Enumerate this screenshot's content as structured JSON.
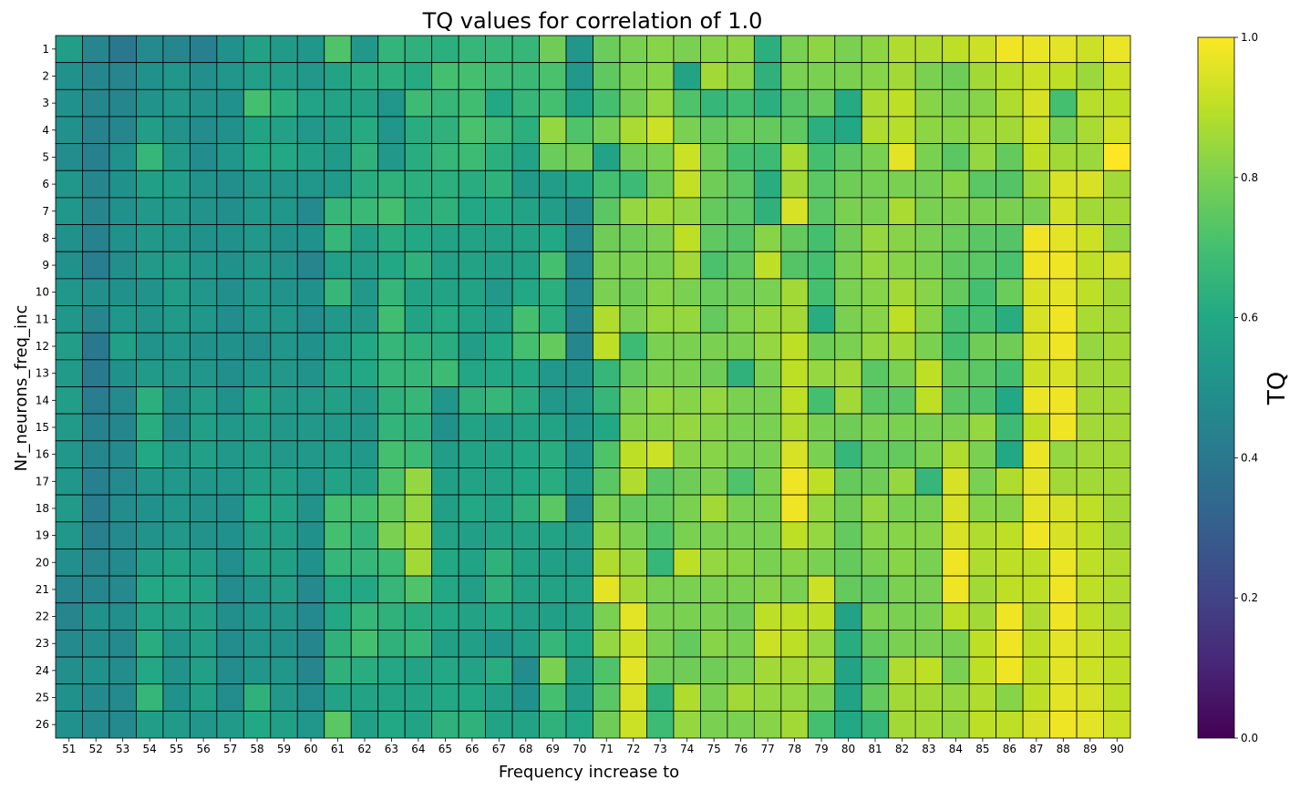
{
  "chart_data": {
    "type": "heatmap",
    "title": "TQ values for correlation of 1.0",
    "xlabel": "Frequency increase to",
    "ylabel": "Nr_neurons_freq_inc",
    "colorbar_label": "TQ",
    "colormap": "viridis",
    "vmin": 0,
    "vmax": 1,
    "colorbar_ticks": [
      "0.0",
      "0.2",
      "0.4",
      "0.6",
      "0.8",
      "1.0"
    ],
    "x": [
      "51",
      "52",
      "53",
      "54",
      "55",
      "56",
      "57",
      "58",
      "59",
      "60",
      "61",
      "62",
      "63",
      "64",
      "65",
      "66",
      "67",
      "68",
      "69",
      "70",
      "71",
      "72",
      "73",
      "74",
      "75",
      "76",
      "77",
      "78",
      "79",
      "80",
      "81",
      "82",
      "83",
      "84",
      "85",
      "86",
      "87",
      "88",
      "89",
      "90"
    ],
    "y": [
      "1",
      "2",
      "3",
      "4",
      "5",
      "6",
      "7",
      "8",
      "9",
      "10",
      "11",
      "12",
      "13",
      "14",
      "15",
      "16",
      "17",
      "18",
      "19",
      "20",
      "21",
      "22",
      "23",
      "24",
      "25",
      "26"
    ],
    "values": [
      [
        0.55,
        0.45,
        0.4,
        0.47,
        0.46,
        0.43,
        0.5,
        0.57,
        0.54,
        0.52,
        0.72,
        0.53,
        0.65,
        0.64,
        0.63,
        0.66,
        0.66,
        0.66,
        0.78,
        0.52,
        0.77,
        0.8,
        0.82,
        0.8,
        0.82,
        0.83,
        0.63,
        0.8,
        0.83,
        0.8,
        0.83,
        0.88,
        0.88,
        0.9,
        0.92,
        0.98,
        0.97,
        0.96,
        0.92,
        0.97
      ],
      [
        0.5,
        0.46,
        0.45,
        0.5,
        0.52,
        0.49,
        0.52,
        0.56,
        0.55,
        0.53,
        0.58,
        0.62,
        0.63,
        0.61,
        0.7,
        0.7,
        0.68,
        0.67,
        0.71,
        0.53,
        0.75,
        0.8,
        0.82,
        0.58,
        0.86,
        0.82,
        0.64,
        0.8,
        0.8,
        0.8,
        0.82,
        0.86,
        0.8,
        0.78,
        0.86,
        0.89,
        0.92,
        0.9,
        0.85,
        0.92
      ],
      [
        0.5,
        0.46,
        0.46,
        0.51,
        0.53,
        0.51,
        0.5,
        0.7,
        0.63,
        0.58,
        0.58,
        0.58,
        0.52,
        0.68,
        0.66,
        0.69,
        0.6,
        0.66,
        0.7,
        0.58,
        0.7,
        0.78,
        0.84,
        0.72,
        0.66,
        0.69,
        0.63,
        0.73,
        0.76,
        0.61,
        0.87,
        0.9,
        0.82,
        0.8,
        0.82,
        0.88,
        0.94,
        0.7,
        0.89,
        0.9
      ],
      [
        0.5,
        0.44,
        0.46,
        0.55,
        0.51,
        0.48,
        0.5,
        0.58,
        0.57,
        0.53,
        0.55,
        0.61,
        0.52,
        0.62,
        0.64,
        0.71,
        0.68,
        0.63,
        0.84,
        0.72,
        0.79,
        0.87,
        0.92,
        0.8,
        0.76,
        0.77,
        0.76,
        0.75,
        0.63,
        0.6,
        0.88,
        0.89,
        0.83,
        0.82,
        0.85,
        0.86,
        0.92,
        0.8,
        0.87,
        0.93
      ],
      [
        0.48,
        0.43,
        0.5,
        0.66,
        0.54,
        0.48,
        0.52,
        0.6,
        0.6,
        0.56,
        0.54,
        0.64,
        0.53,
        0.62,
        0.66,
        0.68,
        0.63,
        0.58,
        0.77,
        0.78,
        0.58,
        0.78,
        0.8,
        0.92,
        0.78,
        0.7,
        0.68,
        0.87,
        0.7,
        0.75,
        0.8,
        0.96,
        0.8,
        0.74,
        0.84,
        0.76,
        0.9,
        0.86,
        0.85,
        1.0
      ],
      [
        0.52,
        0.45,
        0.5,
        0.56,
        0.55,
        0.51,
        0.49,
        0.53,
        0.52,
        0.52,
        0.54,
        0.62,
        0.64,
        0.63,
        0.63,
        0.62,
        0.64,
        0.54,
        0.55,
        0.58,
        0.7,
        0.68,
        0.78,
        0.91,
        0.78,
        0.74,
        0.62,
        0.86,
        0.74,
        0.78,
        0.79,
        0.8,
        0.79,
        0.82,
        0.74,
        0.73,
        0.85,
        0.94,
        0.94,
        0.86
      ],
      [
        0.52,
        0.45,
        0.5,
        0.53,
        0.53,
        0.51,
        0.49,
        0.53,
        0.52,
        0.47,
        0.66,
        0.67,
        0.7,
        0.62,
        0.64,
        0.6,
        0.6,
        0.58,
        0.55,
        0.48,
        0.74,
        0.84,
        0.86,
        0.84,
        0.76,
        0.74,
        0.64,
        0.94,
        0.74,
        0.8,
        0.8,
        0.87,
        0.8,
        0.8,
        0.8,
        0.8,
        0.8,
        0.93,
        0.86,
        0.86
      ],
      [
        0.5,
        0.44,
        0.5,
        0.53,
        0.52,
        0.5,
        0.5,
        0.53,
        0.5,
        0.5,
        0.66,
        0.56,
        0.62,
        0.6,
        0.58,
        0.58,
        0.57,
        0.58,
        0.6,
        0.47,
        0.78,
        0.78,
        0.8,
        0.9,
        0.75,
        0.73,
        0.82,
        0.76,
        0.7,
        0.78,
        0.84,
        0.82,
        0.8,
        0.77,
        0.74,
        0.73,
        0.98,
        0.96,
        0.92,
        0.84
      ],
      [
        0.5,
        0.42,
        0.49,
        0.54,
        0.55,
        0.52,
        0.5,
        0.53,
        0.51,
        0.45,
        0.56,
        0.55,
        0.6,
        0.64,
        0.57,
        0.58,
        0.56,
        0.58,
        0.7,
        0.47,
        0.8,
        0.8,
        0.8,
        0.86,
        0.71,
        0.75,
        0.9,
        0.73,
        0.7,
        0.8,
        0.84,
        0.82,
        0.8,
        0.75,
        0.74,
        0.71,
        0.98,
        0.98,
        0.9,
        0.93
      ],
      [
        0.52,
        0.49,
        0.5,
        0.51,
        0.55,
        0.52,
        0.49,
        0.53,
        0.51,
        0.5,
        0.66,
        0.53,
        0.66,
        0.58,
        0.58,
        0.58,
        0.53,
        0.6,
        0.63,
        0.47,
        0.8,
        0.78,
        0.82,
        0.8,
        0.77,
        0.78,
        0.8,
        0.86,
        0.7,
        0.8,
        0.82,
        0.86,
        0.82,
        0.76,
        0.7,
        0.77,
        0.94,
        0.96,
        0.9,
        0.86
      ],
      [
        0.52,
        0.45,
        0.52,
        0.51,
        0.54,
        0.52,
        0.48,
        0.52,
        0.52,
        0.48,
        0.53,
        0.53,
        0.69,
        0.58,
        0.61,
        0.58,
        0.55,
        0.7,
        0.63,
        0.46,
        0.88,
        0.8,
        0.84,
        0.84,
        0.76,
        0.81,
        0.84,
        0.86,
        0.62,
        0.8,
        0.82,
        0.9,
        0.82,
        0.7,
        0.7,
        0.62,
        0.94,
        0.98,
        0.87,
        0.86
      ],
      [
        0.55,
        0.4,
        0.56,
        0.51,
        0.52,
        0.5,
        0.5,
        0.49,
        0.52,
        0.5,
        0.55,
        0.6,
        0.66,
        0.64,
        0.62,
        0.55,
        0.6,
        0.7,
        0.76,
        0.46,
        0.9,
        0.68,
        0.8,
        0.8,
        0.8,
        0.8,
        0.84,
        0.9,
        0.78,
        0.8,
        0.84,
        0.86,
        0.8,
        0.7,
        0.78,
        0.78,
        0.94,
        0.98,
        0.84,
        0.86
      ],
      [
        0.54,
        0.41,
        0.5,
        0.54,
        0.53,
        0.52,
        0.49,
        0.52,
        0.53,
        0.51,
        0.58,
        0.6,
        0.66,
        0.66,
        0.68,
        0.59,
        0.6,
        0.6,
        0.53,
        0.51,
        0.66,
        0.76,
        0.8,
        0.8,
        0.78,
        0.64,
        0.8,
        0.9,
        0.84,
        0.86,
        0.74,
        0.8,
        0.9,
        0.76,
        0.74,
        0.7,
        0.92,
        0.94,
        0.86,
        0.86
      ],
      [
        0.55,
        0.42,
        0.47,
        0.63,
        0.51,
        0.55,
        0.5,
        0.58,
        0.54,
        0.54,
        0.56,
        0.54,
        0.64,
        0.66,
        0.52,
        0.64,
        0.66,
        0.62,
        0.53,
        0.52,
        0.66,
        0.8,
        0.84,
        0.82,
        0.84,
        0.8,
        0.8,
        0.9,
        0.7,
        0.86,
        0.74,
        0.74,
        0.9,
        0.74,
        0.72,
        0.6,
        0.97,
        0.98,
        0.86,
        0.86
      ],
      [
        0.54,
        0.44,
        0.46,
        0.62,
        0.49,
        0.56,
        0.53,
        0.55,
        0.53,
        0.53,
        0.54,
        0.53,
        0.65,
        0.64,
        0.5,
        0.58,
        0.55,
        0.58,
        0.58,
        0.52,
        0.6,
        0.82,
        0.82,
        0.84,
        0.82,
        0.8,
        0.8,
        0.88,
        0.8,
        0.78,
        0.8,
        0.8,
        0.8,
        0.8,
        0.84,
        0.68,
        0.9,
        0.98,
        0.86,
        0.86
      ],
      [
        0.52,
        0.46,
        0.47,
        0.6,
        0.54,
        0.56,
        0.53,
        0.55,
        0.53,
        0.53,
        0.55,
        0.53,
        0.7,
        0.68,
        0.55,
        0.58,
        0.58,
        0.6,
        0.62,
        0.52,
        0.72,
        0.9,
        0.92,
        0.82,
        0.82,
        0.8,
        0.8,
        0.94,
        0.8,
        0.66,
        0.76,
        0.76,
        0.8,
        0.88,
        0.8,
        0.6,
        0.97,
        0.84,
        0.86,
        0.86
      ],
      [
        0.52,
        0.43,
        0.47,
        0.52,
        0.53,
        0.52,
        0.52,
        0.56,
        0.56,
        0.52,
        0.58,
        0.56,
        0.72,
        0.84,
        0.56,
        0.58,
        0.58,
        0.6,
        0.62,
        0.54,
        0.74,
        0.88,
        0.74,
        0.78,
        0.8,
        0.72,
        0.8,
        0.98,
        0.9,
        0.76,
        0.78,
        0.84,
        0.66,
        0.94,
        0.8,
        0.88,
        0.96,
        0.86,
        0.86,
        0.86
      ],
      [
        0.54,
        0.42,
        0.48,
        0.5,
        0.52,
        0.51,
        0.49,
        0.6,
        0.58,
        0.51,
        0.7,
        0.7,
        0.76,
        0.84,
        0.56,
        0.6,
        0.58,
        0.64,
        0.74,
        0.48,
        0.8,
        0.76,
        0.76,
        0.8,
        0.86,
        0.8,
        0.8,
        0.98,
        0.84,
        0.78,
        0.84,
        0.8,
        0.8,
        0.94,
        0.82,
        0.82,
        0.96,
        0.94,
        0.9,
        0.86
      ],
      [
        0.52,
        0.43,
        0.47,
        0.51,
        0.53,
        0.51,
        0.5,
        0.56,
        0.56,
        0.5,
        0.7,
        0.65,
        0.8,
        0.86,
        0.58,
        0.56,
        0.58,
        0.58,
        0.58,
        0.55,
        0.84,
        0.8,
        0.72,
        0.8,
        0.8,
        0.8,
        0.8,
        0.9,
        0.84,
        0.76,
        0.82,
        0.82,
        0.82,
        0.94,
        0.88,
        0.9,
        0.98,
        0.94,
        0.9,
        0.86
      ],
      [
        0.49,
        0.45,
        0.47,
        0.55,
        0.58,
        0.55,
        0.49,
        0.57,
        0.56,
        0.5,
        0.66,
        0.66,
        0.68,
        0.86,
        0.6,
        0.58,
        0.64,
        0.58,
        0.56,
        0.55,
        0.88,
        0.84,
        0.66,
        0.9,
        0.84,
        0.82,
        0.8,
        0.82,
        0.8,
        0.76,
        0.8,
        0.82,
        0.8,
        0.98,
        0.88,
        0.9,
        0.9,
        0.97,
        0.9,
        0.88
      ],
      [
        0.46,
        0.46,
        0.47,
        0.6,
        0.6,
        0.58,
        0.48,
        0.52,
        0.55,
        0.47,
        0.6,
        0.6,
        0.66,
        0.72,
        0.6,
        0.56,
        0.64,
        0.58,
        0.58,
        0.58,
        0.96,
        0.86,
        0.8,
        0.8,
        0.8,
        0.8,
        0.82,
        0.8,
        0.92,
        0.76,
        0.76,
        0.8,
        0.8,
        0.98,
        0.86,
        0.9,
        0.9,
        0.98,
        0.9,
        0.88
      ],
      [
        0.45,
        0.5,
        0.49,
        0.58,
        0.57,
        0.56,
        0.49,
        0.52,
        0.52,
        0.47,
        0.6,
        0.66,
        0.64,
        0.62,
        0.6,
        0.58,
        0.6,
        0.56,
        0.56,
        0.57,
        0.8,
        0.96,
        0.8,
        0.8,
        0.8,
        0.78,
        0.9,
        0.9,
        0.9,
        0.58,
        0.8,
        0.8,
        0.8,
        0.9,
        0.86,
        0.98,
        0.88,
        0.98,
        0.9,
        0.88
      ],
      [
        0.47,
        0.48,
        0.47,
        0.62,
        0.52,
        0.56,
        0.48,
        0.52,
        0.51,
        0.46,
        0.64,
        0.7,
        0.64,
        0.66,
        0.56,
        0.56,
        0.52,
        0.56,
        0.66,
        0.6,
        0.84,
        0.92,
        0.8,
        0.76,
        0.82,
        0.8,
        0.92,
        0.9,
        0.84,
        0.62,
        0.76,
        0.8,
        0.8,
        0.8,
        0.9,
        0.98,
        0.9,
        0.96,
        0.92,
        0.9
      ],
      [
        0.49,
        0.5,
        0.48,
        0.6,
        0.51,
        0.56,
        0.48,
        0.52,
        0.52,
        0.46,
        0.64,
        0.62,
        0.6,
        0.58,
        0.6,
        0.58,
        0.62,
        0.48,
        0.8,
        0.57,
        0.72,
        0.96,
        0.78,
        0.78,
        0.78,
        0.8,
        0.86,
        0.86,
        0.86,
        0.58,
        0.72,
        0.88,
        0.9,
        0.8,
        0.9,
        0.98,
        0.9,
        0.96,
        0.92,
        0.9
      ],
      [
        0.5,
        0.47,
        0.47,
        0.66,
        0.5,
        0.56,
        0.48,
        0.64,
        0.53,
        0.48,
        0.58,
        0.58,
        0.58,
        0.58,
        0.6,
        0.6,
        0.56,
        0.5,
        0.7,
        0.55,
        0.74,
        0.94,
        0.64,
        0.88,
        0.8,
        0.86,
        0.84,
        0.84,
        0.8,
        0.58,
        0.76,
        0.86,
        0.86,
        0.84,
        0.88,
        0.82,
        0.9,
        0.96,
        0.94,
        0.9
      ],
      [
        0.5,
        0.47,
        0.47,
        0.55,
        0.54,
        0.52,
        0.54,
        0.6,
        0.56,
        0.52,
        0.74,
        0.56,
        0.6,
        0.58,
        0.64,
        0.64,
        0.58,
        0.58,
        0.64,
        0.6,
        0.78,
        0.92,
        0.68,
        0.84,
        0.8,
        0.8,
        0.82,
        0.86,
        0.7,
        0.6,
        0.66,
        0.86,
        0.86,
        0.84,
        0.9,
        0.9,
        0.94,
        0.98,
        0.96,
        0.92
      ]
    ]
  }
}
